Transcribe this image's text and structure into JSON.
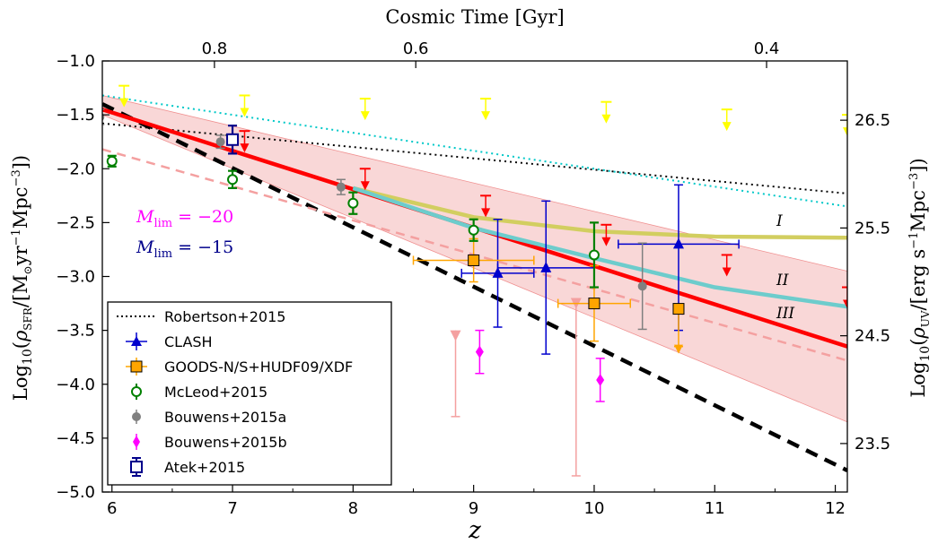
{
  "chart_data": {
    "type": "scatter",
    "xlabel": "z",
    "ylabel": "Log10(ρSFR/[M⊙yr⁻¹Mpc⁻³])",
    "ylabel_right": "Log10(ρUV/[erg s⁻¹Mpc⁻³])",
    "top_axis_label": "Cosmic Time [Gyr]",
    "xlim": [
      5.92,
      12.1
    ],
    "ylim": [
      -5.0,
      -1.0
    ],
    "xticks": [
      "6",
      "7",
      "8",
      "9",
      "10",
      "11",
      "12"
    ],
    "yticks": [
      "−1.0",
      "−1.5",
      "−2.0",
      "−2.5",
      "−3.0",
      "−3.5",
      "−4.0",
      "−4.5",
      "−5.0"
    ],
    "top_ticks": [
      {
        "label": "0.8",
        "z": 6.85
      },
      {
        "label": "0.6",
        "z": 8.52
      },
      {
        "label": "0.4",
        "z": 11.43
      }
    ],
    "right_ticks": [
      {
        "label": "26.5",
        "y": -1.55
      },
      {
        "label": "25.5",
        "y": -2.55
      },
      {
        "label": "24.5",
        "y": -3.55
      },
      {
        "label": "23.5",
        "y": -4.55
      }
    ],
    "annotations": [
      {
        "text": "M_lim = −20",
        "color": "#ff00ff"
      },
      {
        "text": "M_lim = −15",
        "color": "#00008b"
      }
    ],
    "curve_labels": [
      "I",
      "II",
      "III"
    ],
    "legend": {
      "placement": "lower-left",
      "entries": [
        "Robertson+2015",
        "CLASH",
        "GOODS-N/S+HUDF09/XDF",
        "McLeod+2015",
        "Bouwens+2015a",
        "Bouwens+2015b",
        "Atek+2015"
      ]
    },
    "band": {
      "color": "#f4b6b6",
      "upper": [
        [
          5.92,
          -1.32
        ],
        [
          12.1,
          -2.95
        ]
      ],
      "lower": [
        [
          5.92,
          -1.5
        ],
        [
          12.1,
          -4.35
        ]
      ]
    },
    "lines": [
      {
        "name": "Robertson+2015",
        "color": "#000000",
        "style": "dotted",
        "points": [
          [
            5.92,
            -1.58
          ],
          [
            12.1,
            -2.23
          ]
        ]
      },
      {
        "name": "",
        "color": "#00c8c8",
        "style": "dotted",
        "points": [
          [
            5.92,
            -1.32
          ],
          [
            12.1,
            -2.35
          ]
        ]
      },
      {
        "name": "",
        "color": "#000000",
        "style": "dashed-thick",
        "points": [
          [
            5.92,
            -1.4
          ],
          [
            12.1,
            -4.8
          ]
        ]
      },
      {
        "name": "",
        "color": "#f4a0a0",
        "style": "dashed",
        "points": [
          [
            5.92,
            -1.82
          ],
          [
            12.1,
            -3.78
          ]
        ]
      },
      {
        "name": "",
        "color": "#ff0000",
        "style": "solid-thick",
        "points": [
          [
            5.92,
            -1.45
          ],
          [
            12.1,
            -3.65
          ]
        ]
      },
      {
        "name": "I",
        "color": "#d2ce60",
        "style": "solid-thick",
        "points": [
          [
            8.0,
            -2.18
          ],
          [
            9.0,
            -2.45
          ],
          [
            10.0,
            -2.58
          ],
          [
            11.0,
            -2.63
          ],
          [
            12.1,
            -2.64
          ]
        ]
      },
      {
        "name": "II",
        "color": "#6dcccc",
        "style": "solid-thick",
        "points": [
          [
            8.0,
            -2.18
          ],
          [
            9.0,
            -2.55
          ],
          [
            10.0,
            -2.83
          ],
          [
            11.0,
            -3.1
          ],
          [
            12.1,
            -3.28
          ]
        ]
      }
    ],
    "series": [
      {
        "name": "CLASH",
        "color": "#0000cd",
        "marker": "triangle",
        "points": [
          {
            "x": 9.2,
            "y": -2.97,
            "xerr": [
              0.3,
              0.3
            ],
            "yerr": [
              0.5,
              0.5
            ]
          },
          {
            "x": 9.6,
            "y": -2.92,
            "xerr": [
              0.4,
              0.4
            ],
            "yerr": [
              0.8,
              0.62
            ]
          },
          {
            "x": 10.7,
            "y": -2.7,
            "xerr": [
              0.5,
              0.5
            ],
            "yerr": [
              0.8,
              0.55
            ]
          }
        ]
      },
      {
        "name": "GOODS-N/S+HUDF09/XDF",
        "color": "#ffa500",
        "marker": "square",
        "points": [
          {
            "x": 9.0,
            "y": -2.85,
            "xerr": [
              0.5,
              0.5
            ],
            "yerr": [
              0.2,
              0.2
            ]
          },
          {
            "x": 10.0,
            "y": -3.25,
            "xerr": [
              0.3,
              0.3
            ],
            "yerr": [
              0.35,
              0.35
            ]
          },
          {
            "x": 10.7,
            "y": -3.3,
            "xerr": [
              0,
              0
            ],
            "yerr": [
              0.35,
              0
            ],
            "upper_limit": true
          }
        ]
      },
      {
        "name": "McLeod+2015",
        "color": "#008000",
        "marker": "circle-open",
        "points": [
          {
            "x": 6.0,
            "y": -1.93,
            "xerr": [
              0,
              0
            ],
            "yerr": [
              0.05,
              0.05
            ]
          },
          {
            "x": 7.0,
            "y": -2.1,
            "xerr": [
              0,
              0
            ],
            "yerr": [
              0.08,
              0.08
            ]
          },
          {
            "x": 8.0,
            "y": -2.32,
            "xerr": [
              0,
              0
            ],
            "yerr": [
              0.1,
              0.1
            ]
          },
          {
            "x": 9.0,
            "y": -2.57,
            "xerr": [
              0,
              0
            ],
            "yerr": [
              0.1,
              0.1
            ]
          },
          {
            "x": 10.0,
            "y": -2.8,
            "xerr": [
              0,
              0
            ],
            "yerr": [
              0.3,
              0.3
            ]
          }
        ]
      },
      {
        "name": "Bouwens+2015a",
        "color": "#808080",
        "marker": "circle",
        "points": [
          {
            "x": 5.9,
            "y": -1.52,
            "xerr": [
              0,
              0
            ],
            "yerr": [
              0.07,
              0.07
            ]
          },
          {
            "x": 6.9,
            "y": -1.75,
            "xerr": [
              0,
              0
            ],
            "yerr": [
              0.06,
              0.06
            ]
          },
          {
            "x": 7.9,
            "y": -2.17,
            "xerr": [
              0,
              0
            ],
            "yerr": [
              0.07,
              0.07
            ]
          },
          {
            "x": 10.4,
            "y": -3.09,
            "xerr": [
              0,
              0
            ],
            "yerr": [
              0.4,
              0.4
            ]
          }
        ]
      },
      {
        "name": "Bouwens+2015b",
        "color": "#ff00ff",
        "marker": "diamond",
        "points": [
          {
            "x": 9.05,
            "y": -3.7,
            "xerr": [
              0,
              0
            ],
            "yerr": [
              0.2,
              0.2
            ]
          },
          {
            "x": 10.05,
            "y": -3.96,
            "xerr": [
              0,
              0
            ],
            "yerr": [
              0.2,
              0.2
            ]
          }
        ]
      },
      {
        "name": "Atek+2015",
        "color": "#00008b",
        "marker": "square-open",
        "points": [
          {
            "x": 7.0,
            "y": -1.73,
            "xerr": [
              0,
              0
            ],
            "yerr": [
              0.13,
              0.13
            ]
          }
        ]
      }
    ],
    "upper_limits": [
      {
        "color": "#ffff00",
        "x": [
          6.1,
          7.1,
          8.1,
          9.1,
          10.1,
          11.1,
          12.1
        ],
        "y": [
          -1.23,
          -1.32,
          -1.35,
          -1.35,
          -1.38,
          -1.45,
          -1.5
        ]
      },
      {
        "color": "#ff0000",
        "x": [
          7.1,
          8.1,
          9.1,
          10.1,
          11.1,
          12.1
        ],
        "y": [
          -1.65,
          -2.0,
          -2.25,
          -2.52,
          -2.8,
          -3.1
        ]
      },
      {
        "color": "#f4a0a0",
        "x": [
          8.85,
          9.85
        ],
        "y": [
          -3.5,
          -3.2
        ],
        "yerr": [
          0.8,
          1.65
        ]
      }
    ]
  }
}
